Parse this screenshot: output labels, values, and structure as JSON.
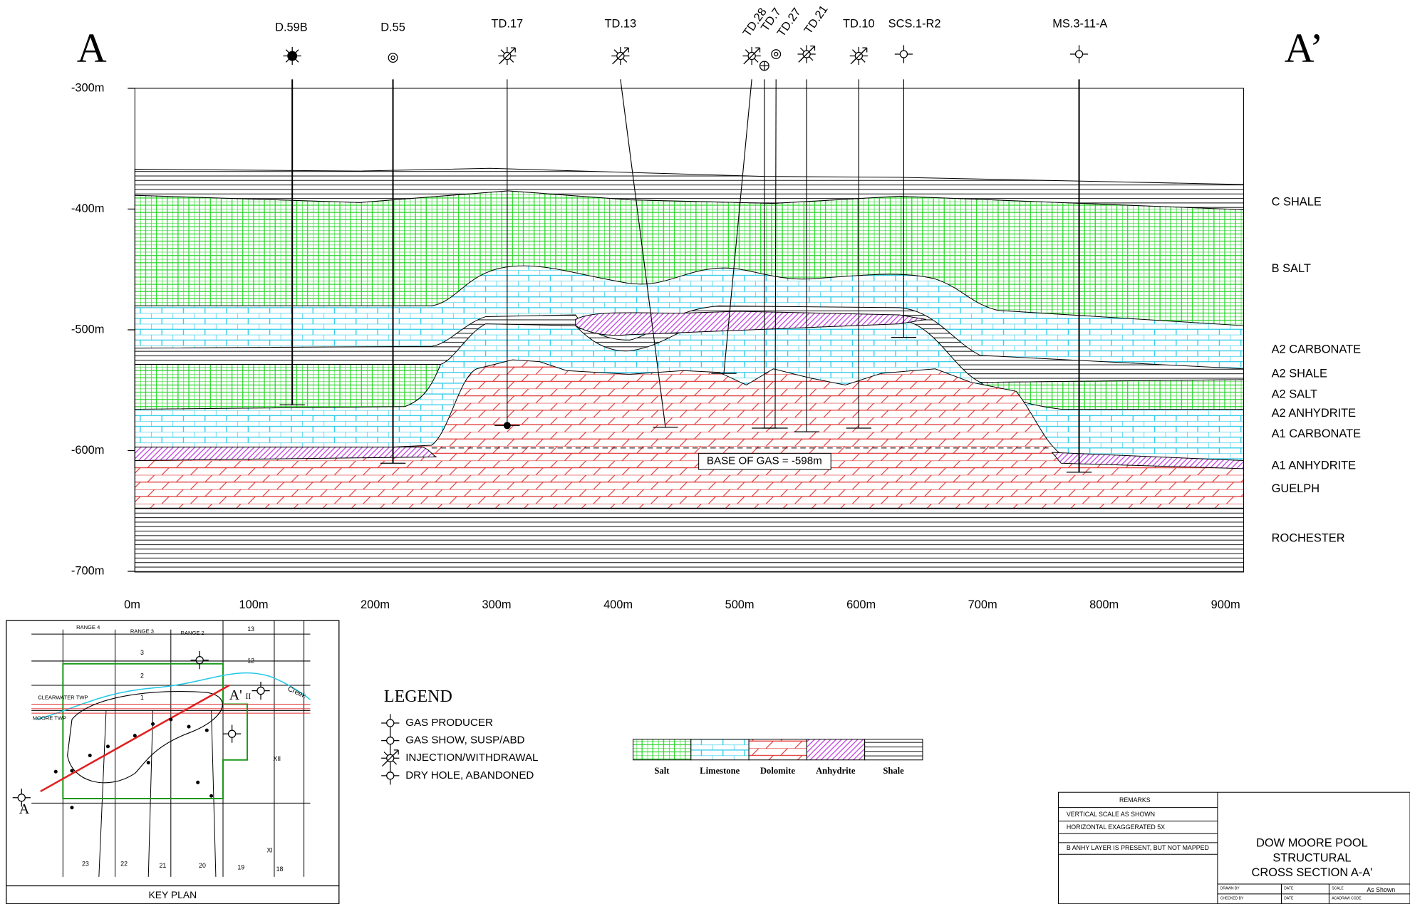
{
  "section_markers": [
    "A",
    "A’"
  ],
  "wells": [
    "D.59B",
    "D.55",
    "TD.17",
    "TD.13",
    "TD.28",
    "TD.7",
    "TD.27",
    "TD.21",
    "TD.10",
    "SCS.1-R2",
    "MS.3-11-A"
  ],
  "depth_labels": [
    "-300m",
    "-400m",
    "-500m",
    "-600m",
    "-700m"
  ],
  "distance_labels": [
    "0m",
    "100m",
    "200m",
    "300m",
    "400m",
    "500m",
    "600m",
    "700m",
    "800m",
    "900m"
  ],
  "formations": [
    "C SHALE",
    "B SALT",
    "A2 CARBONATE",
    "A2 SHALE",
    "A2 SALT",
    "A2 ANHYDRITE",
    "A1 CARBONATE",
    "A1 ANHYDRITE",
    "GUELPH",
    "ROCHESTER"
  ],
  "annotation": "BASE OF GAS = -598m",
  "legend": {
    "title": "LEGEND",
    "symbols": [
      "GAS PRODUCER",
      "GAS SHOW, SUSP/ABD",
      "INJECTION/WITHDRAWAL",
      "DRY HOLE, ABANDONED"
    ],
    "lithologies": [
      "Salt",
      "Limestone",
      "Dolomite",
      "Anhydrite",
      "Shale"
    ]
  },
  "key_plan": {
    "title": "KEY PLAN",
    "labels": [
      "RANGE 4",
      "RANGE 3",
      "RANGE 2",
      "13",
      "3",
      "12",
      "2",
      "1",
      "CLEARWATER TWP",
      "MOORE TWP",
      "XII",
      "XI",
      "23",
      "22",
      "21",
      "20",
      "19",
      "18",
      "A",
      "A'",
      "II",
      "Creek"
    ]
  },
  "title_block": {
    "remarks_heading": "REMARKS",
    "remarks": [
      "VERTICAL SCALE AS SHOWN",
      "HORIZONTAL EXAGGERATED 5X",
      "B ANHY LAYER IS PRESENT, BUT NOT MAPPED"
    ],
    "title": [
      "DOW MOORE POOL",
      "STRUCTURAL",
      "CROSS SECTION A-A'"
    ],
    "fields": [
      "DRAWN BY",
      "DATE",
      "SCALE",
      "As Shown",
      "CHECKED BY",
      "DATE",
      "ACADRAW CODE"
    ]
  }
}
